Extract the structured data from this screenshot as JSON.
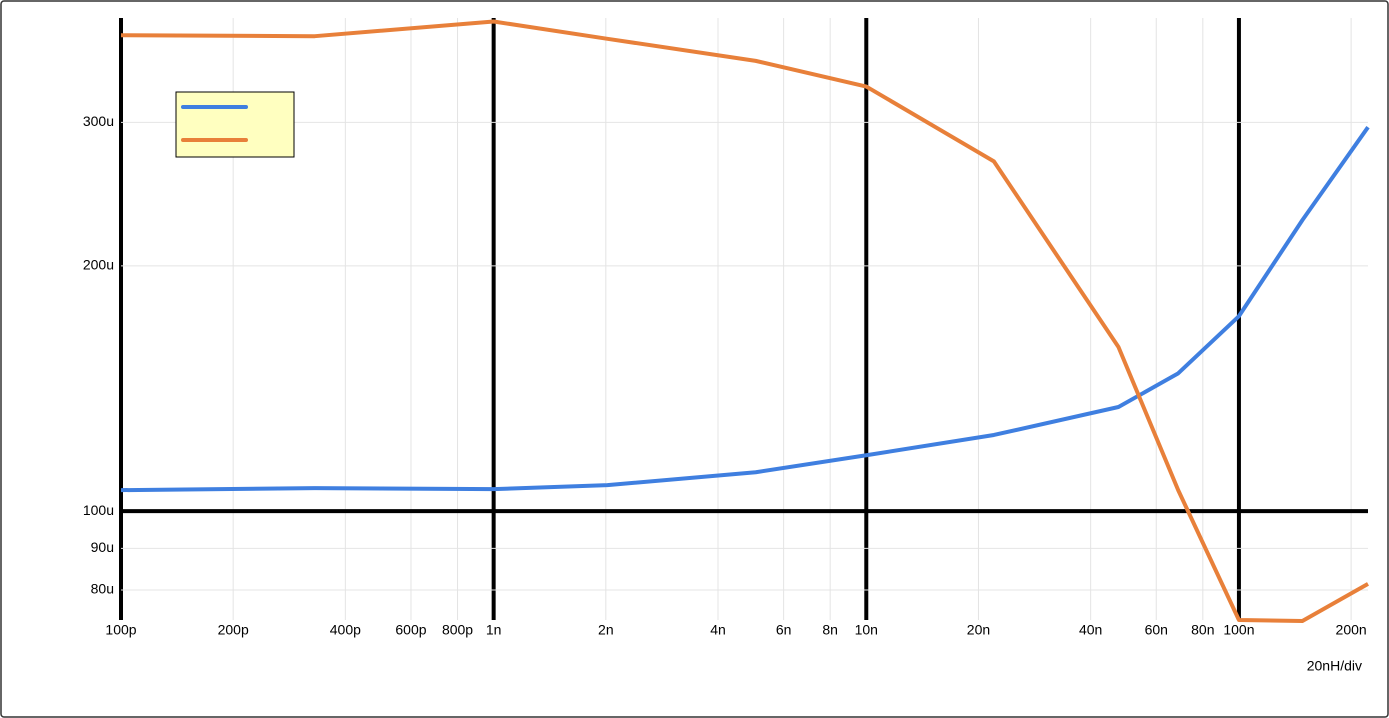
{
  "chart_data": {
    "type": "line",
    "x_scale": "log",
    "y_scale": "log",
    "grid": true,
    "legend": "upper left",
    "annotation": "20nH/div",
    "xlim": [
      1e-10,
      2.22e-07
    ],
    "ylim": [
      7.35e-05,
      0.000403
    ],
    "xticks": [
      {
        "value": 1e-10,
        "label": "100p"
      },
      {
        "value": 2e-10,
        "label": "200p"
      },
      {
        "value": 4e-10,
        "label": "400p"
      },
      {
        "value": 6e-10,
        "label": "600p"
      },
      {
        "value": 8e-10,
        "label": "800p"
      },
      {
        "value": 1e-09,
        "label": "1n"
      },
      {
        "value": 2e-09,
        "label": "2n"
      },
      {
        "value": 4e-09,
        "label": "4n"
      },
      {
        "value": 6e-09,
        "label": "6n"
      },
      {
        "value": 8e-09,
        "label": "8n"
      },
      {
        "value": 1e-08,
        "label": "10n"
      },
      {
        "value": 2e-08,
        "label": "20n"
      },
      {
        "value": 4e-08,
        "label": "40n"
      },
      {
        "value": 6e-08,
        "label": "60n"
      },
      {
        "value": 8e-08,
        "label": "80n"
      },
      {
        "value": 1e-07,
        "label": "100n"
      },
      {
        "value": 2e-07,
        "label": "200n"
      }
    ],
    "yticks": [
      {
        "value": 8e-05,
        "label": "80u"
      },
      {
        "value": 9e-05,
        "label": "90u"
      },
      {
        "value": 0.0001,
        "label": "100u"
      },
      {
        "value": 0.0002,
        "label": "200u"
      },
      {
        "value": 0.0003,
        "label": "300u"
      }
    ],
    "x": [
      1e-10,
      3.31e-10,
      1e-09,
      2.02e-09,
      5.05e-09,
      1e-08,
      2.2e-08,
      4.75e-08,
      6.87e-08,
      1e-07,
      1.48e-07,
      2.22e-07
    ],
    "series": [
      {
        "color": "#3f7fe0",
        "values": [
          0.0001061,
          0.0001067,
          0.0001064,
          0.0001076,
          0.0001116,
          0.0001171,
          0.000124,
          0.0001342,
          0.0001476,
          0.0001735,
          0.0002276,
          0.000296
        ]
      },
      {
        "color": "#e8803a",
        "values": [
          0.0003838,
          0.0003828,
          0.000399,
          0.00038,
          0.000357,
          0.000332,
          0.0002687,
          0.000159,
          0.0001061,
          7.35e-05,
          7.33e-05,
          8.14e-05
        ]
      }
    ]
  }
}
